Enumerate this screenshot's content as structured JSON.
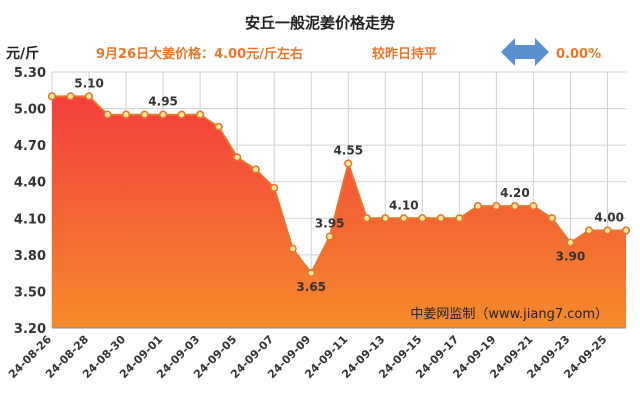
{
  "chart_data": {
    "type": "area",
    "title": "安丘一般泥姜价格走势",
    "ylabel": "元/斤",
    "annotation_left": "9月26日大姜价格：4.00元/斤左右",
    "annotation_right_label": "较昨日持平",
    "annotation_right_value": "0.00%",
    "watermark": "中姜网监制（www.jiang7.com）",
    "ylim": [
      3.2,
      5.3
    ],
    "yticks": [
      "3.20",
      "3.50",
      "3.80",
      "4.10",
      "4.40",
      "4.70",
      "5.00",
      "5.30"
    ],
    "x": [
      "24-08-26",
      "24-08-27",
      "24-08-28",
      "24-08-29",
      "24-08-30",
      "24-08-31",
      "24-09-01",
      "24-09-02",
      "24-09-03",
      "24-09-04",
      "24-09-05",
      "24-09-06",
      "24-09-07",
      "24-09-08",
      "24-09-09",
      "24-09-10",
      "24-09-11",
      "24-09-12",
      "24-09-13",
      "24-09-14",
      "24-09-15",
      "24-09-16",
      "24-09-17",
      "24-09-18",
      "24-09-19",
      "24-09-20",
      "24-09-21",
      "24-09-22",
      "24-09-23",
      "24-09-24",
      "24-09-25",
      "24-09-26"
    ],
    "xtick_labels": [
      "24-08-26",
      "24-08-28",
      "24-08-30",
      "24-09-01",
      "24-09-03",
      "24-09-05",
      "24-09-07",
      "24-09-09",
      "24-09-11",
      "24-09-13",
      "24-09-15",
      "24-09-17",
      "24-09-19",
      "24-09-21",
      "24-09-23",
      "24-09-25"
    ],
    "values": [
      5.1,
      5.1,
      5.1,
      4.95,
      4.95,
      4.95,
      4.95,
      4.95,
      4.95,
      4.85,
      4.6,
      4.5,
      4.35,
      3.85,
      3.65,
      3.95,
      4.55,
      4.1,
      4.1,
      4.1,
      4.1,
      4.1,
      4.1,
      4.2,
      4.2,
      4.2,
      4.2,
      4.1,
      3.9,
      4.0,
      4.0,
      4.0
    ],
    "data_labels": [
      {
        "x": "24-08-28",
        "text": "5.10"
      },
      {
        "x": "24-09-01",
        "text": "4.95"
      },
      {
        "x": "24-09-09",
        "text": "3.65"
      },
      {
        "x": "24-09-10",
        "text": "3.95"
      },
      {
        "x": "24-09-11",
        "text": "4.55"
      },
      {
        "x": "24-09-14",
        "text": "4.10"
      },
      {
        "x": "24-09-20",
        "text": "4.20"
      },
      {
        "x": "24-09-23",
        "text": "3.90"
      },
      {
        "x": "24-09-26",
        "text": "4.00"
      }
    ],
    "grid": true,
    "colors": {
      "line": "#e8762b",
      "fill_top": "#f43e3e",
      "fill_bottom": "#f58a2a",
      "point_fill": "#fbe8a0",
      "arrow": "#5b8fd0",
      "accent_text": "#e8762b"
    }
  }
}
